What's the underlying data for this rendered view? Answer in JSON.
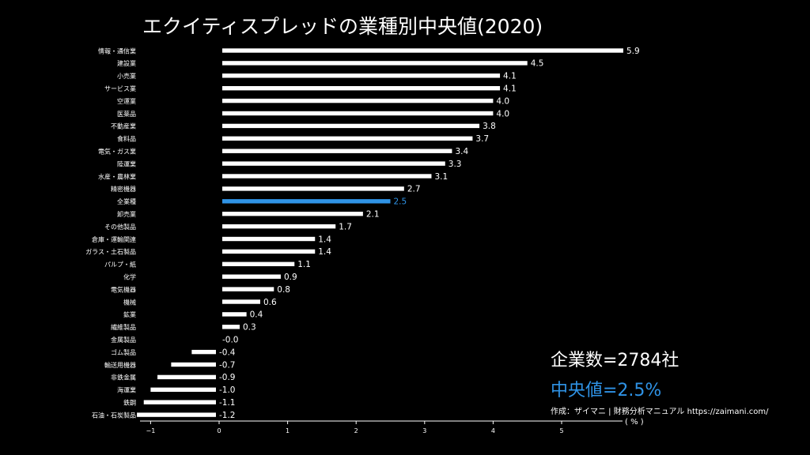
{
  "title": "エクイティスプレッドの業種別中央値(2020)",
  "summary": {
    "company_count": "企業数=2784社",
    "median": "中央値=2.5%",
    "credit": "作成：ザイマニ | 財務分析マニュアル https://zaimani.com/",
    "unit": "( % )"
  },
  "colors": {
    "background": "#000000",
    "bar": "#ffffff",
    "highlight": "#2f93e6",
    "text": "#ffffff"
  },
  "chart_data": {
    "type": "bar",
    "orientation": "horizontal",
    "title": "エクイティスプレッドの業種別中央値(2020)",
    "xlabel": "( % )",
    "ylabel": "",
    "xlim": [
      -1.2,
      5.9
    ],
    "x_ticks": [
      "−1",
      "0",
      "1",
      "2",
      "3",
      "4",
      "5"
    ],
    "x_tick_values": [
      -1,
      0,
      1,
      2,
      3,
      4,
      5
    ],
    "grid": false,
    "highlight_category": "全業種",
    "categories": [
      "情報・通信業",
      "建設業",
      "小売業",
      "サービス業",
      "空運業",
      "医薬品",
      "不動産業",
      "食料品",
      "電気・ガス業",
      "陸運業",
      "水産・農林業",
      "精密機器",
      "全業種",
      "卸売業",
      "その他製品",
      "倉庫・運輸関連",
      "ガラス・土石製品",
      "パルプ・紙",
      "化学",
      "電気機器",
      "機械",
      "鉱業",
      "繊維製品",
      "金属製品",
      "ゴム製品",
      "輸送用機器",
      "非鉄金属",
      "海運業",
      "鉄鋼",
      "石油・石炭製品"
    ],
    "values": [
      5.9,
      4.5,
      4.1,
      4.1,
      4.0,
      4.0,
      3.8,
      3.7,
      3.4,
      3.3,
      3.1,
      2.7,
      2.5,
      2.1,
      1.7,
      1.4,
      1.4,
      1.1,
      0.9,
      0.8,
      0.6,
      0.4,
      0.3,
      -0.0,
      -0.4,
      -0.7,
      -0.9,
      -1.0,
      -1.1,
      -1.2
    ],
    "value_labels": [
      "5.9",
      "4.5",
      "4.1",
      "4.1",
      "4.0",
      "4.0",
      "3.8",
      "3.7",
      "3.4",
      "3.3",
      "3.1",
      "2.7",
      "2.5",
      "2.1",
      "1.7",
      "1.4",
      "1.4",
      "1.1",
      "0.9",
      "0.8",
      "0.6",
      "0.4",
      "0.3",
      "-0.0",
      "-0.4",
      "-0.7",
      "-0.9",
      "-1.0",
      "-1.1",
      "-1.2"
    ]
  }
}
